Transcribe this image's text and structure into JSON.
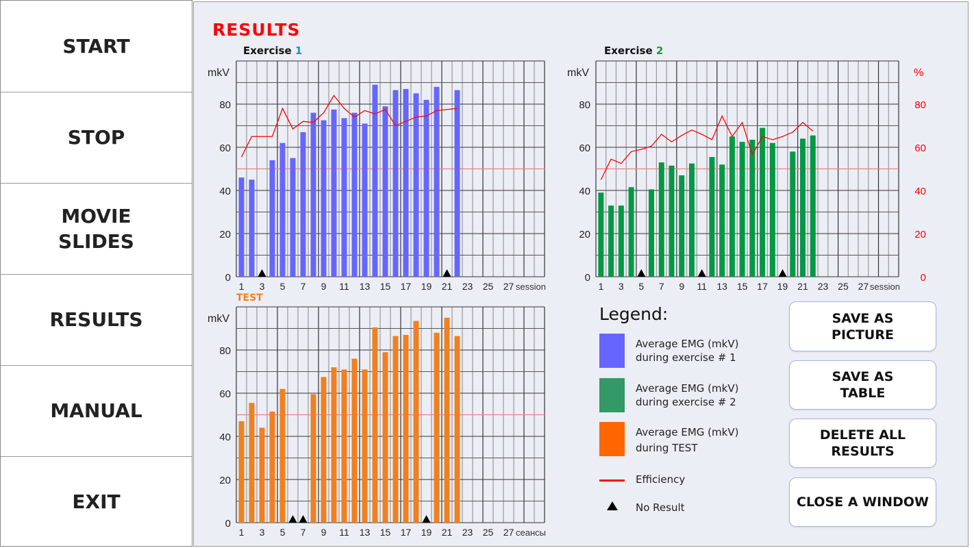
{
  "sidebar": {
    "items": [
      {
        "label": "START"
      },
      {
        "label": "STOP"
      },
      {
        "label": "MOVIE\nSLIDES"
      },
      {
        "label": "RESULTS"
      },
      {
        "label": "MANUAL"
      },
      {
        "label": "EXIT"
      }
    ]
  },
  "header": {
    "title": "RESULTS"
  },
  "legend": {
    "title": "Legend:",
    "items": [
      {
        "label": "Average EMG (mkV)\nduring exercise # 1",
        "color": "#6666ff"
      },
      {
        "label": "Average EMG (mkV)\nduring exercise # 2",
        "color": "#339966"
      },
      {
        "label": "Average EMG (mkV)\nduring TEST",
        "color": "#ff6600"
      },
      {
        "label": "Efficiency",
        "color": "#ff0000"
      },
      {
        "label": "No Result"
      }
    ]
  },
  "buttons": {
    "save_picture": "SAVE AS\nPICTURE",
    "save_table": "SAVE AS\nTABLE",
    "delete_all": "DELETE ALL\nRESULTS",
    "close": "CLOSE A WINDOW"
  },
  "chart_data": [
    {
      "type": "bar",
      "title_prefix": "Exercise",
      "title_num": "1",
      "title_num_color": "#1e90d0",
      "ylabel": "mkV",
      "xlabel": "session",
      "ylim": [
        0,
        100
      ],
      "yticks": [
        0,
        20,
        40,
        60,
        80
      ],
      "xticks": [
        1,
        3,
        5,
        7,
        9,
        11,
        13,
        15,
        17,
        19,
        21,
        23,
        25,
        27
      ],
      "sessions": 30,
      "bar_color": "#6666ff",
      "threshold": 50,
      "values": [
        46,
        45,
        null,
        54,
        62,
        55,
        67,
        76,
        72.5,
        77.5,
        73.5,
        76,
        71,
        89,
        79,
        86.5,
        87,
        85,
        82,
        88,
        null,
        86.5
      ],
      "efficiency": [
        55.5,
        65,
        65,
        65,
        78,
        68.5,
        72,
        71.5,
        76,
        84,
        78,
        74,
        77,
        75.5,
        77.5,
        70,
        72,
        74,
        74.5,
        77,
        77.5,
        78
      ]
    },
    {
      "type": "bar",
      "title_prefix": "Exercise",
      "title_num": "2",
      "title_num_color": "#1a9a3a",
      "ylabel": "mkV",
      "y2label": "%",
      "xlabel": "session",
      "ylim": [
        0,
        100
      ],
      "yticks": [
        0,
        20,
        40,
        60,
        80
      ],
      "y2ticks": [
        0,
        20,
        40,
        60,
        80
      ],
      "xticks": [
        1,
        3,
        5,
        7,
        9,
        11,
        13,
        15,
        17,
        19,
        21,
        23,
        25,
        27
      ],
      "sessions": 30,
      "bar_color": "#009944",
      "threshold": 50,
      "values": [
        39,
        33,
        33,
        41.5,
        null,
        40.5,
        53,
        51.5,
        47,
        52.5,
        null,
        55.5,
        52,
        65,
        62.5,
        63.5,
        69,
        62,
        null,
        58,
        64,
        65.5
      ],
      "efficiency": [
        45,
        54.5,
        52.5,
        58,
        59,
        60.5,
        66,
        62.5,
        65.5,
        68,
        66,
        63.5,
        74.5,
        65,
        71.5,
        56.5,
        65,
        63.5,
        65,
        67,
        71.5,
        67.5
      ]
    },
    {
      "type": "bar",
      "title_prefix": "TEST",
      "title_num": "",
      "title_num_color": "#f08020",
      "ylabel": "mkV",
      "xlabel": "сеансы",
      "ylim": [
        0,
        100
      ],
      "yticks": [
        0,
        20,
        40,
        60,
        80
      ],
      "xticks": [
        1,
        3,
        5,
        7,
        9,
        11,
        13,
        15,
        17,
        19,
        21,
        23,
        25,
        27
      ],
      "sessions": 30,
      "bar_color": "#f08020",
      "threshold": 50,
      "values": [
        47,
        55.5,
        44,
        51.5,
        62,
        null,
        null,
        59.5,
        67.5,
        72,
        71,
        76,
        71,
        90.5,
        79,
        86.5,
        87,
        93.5,
        null,
        88,
        95,
        86.5
      ]
    }
  ]
}
